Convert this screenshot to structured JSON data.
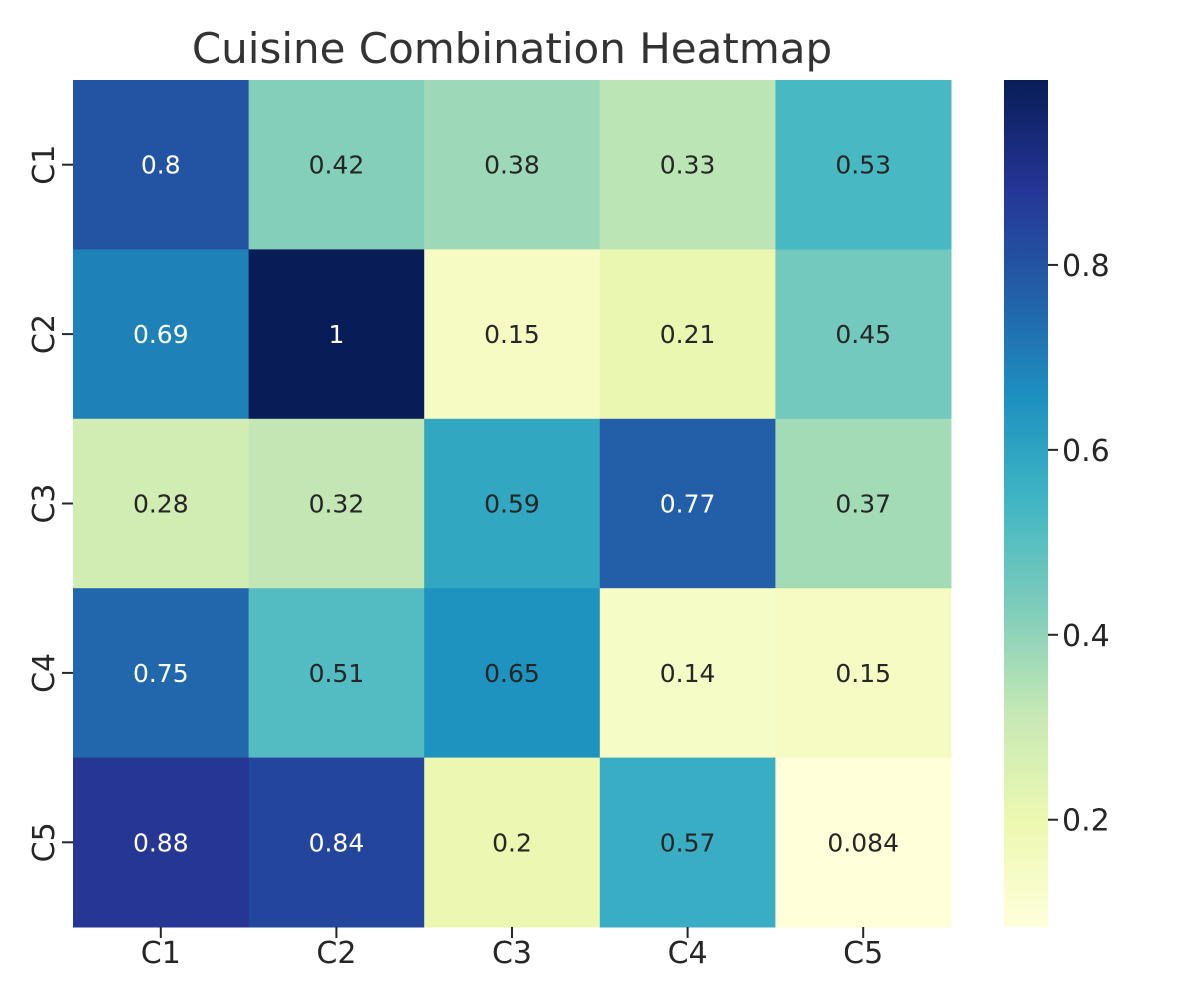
{
  "chart_data": {
    "type": "heatmap",
    "title": "Cuisine Combination Heatmap",
    "xlabel": "",
    "ylabel": "",
    "x_categories": [
      "C1",
      "C2",
      "C3",
      "C4",
      "C5"
    ],
    "y_categories": [
      "C1",
      "C2",
      "C3",
      "C4",
      "C5"
    ],
    "values": [
      [
        0.8,
        0.42,
        0.38,
        0.33,
        0.53
      ],
      [
        0.69,
        1,
        0.15,
        0.21,
        0.45
      ],
      [
        0.28,
        0.32,
        0.59,
        0.77,
        0.37
      ],
      [
        0.75,
        0.51,
        0.65,
        0.14,
        0.15
      ],
      [
        0.88,
        0.84,
        0.2,
        0.57,
        0.084
      ]
    ],
    "annotations": [
      [
        "0.8",
        "0.42",
        "0.38",
        "0.33",
        "0.53"
      ],
      [
        "0.69",
        "1",
        "0.15",
        "0.21",
        "0.45"
      ],
      [
        "0.28",
        "0.32",
        "0.59",
        "0.77",
        "0.37"
      ],
      [
        "0.75",
        "0.51",
        "0.65",
        "0.14",
        "0.15"
      ],
      [
        "0.88",
        "0.84",
        "0.2",
        "0.57",
        "0.084"
      ]
    ],
    "colormap": "YlGnBu",
    "color_range": [
      0.084,
      1
    ],
    "colorbar_ticks": [
      0.2,
      0.4,
      0.6,
      0.8
    ],
    "colorbar_tick_labels": [
      "0.2",
      "0.4",
      "0.6",
      "0.8"
    ],
    "grid": false,
    "colorbar_placement": "right"
  }
}
